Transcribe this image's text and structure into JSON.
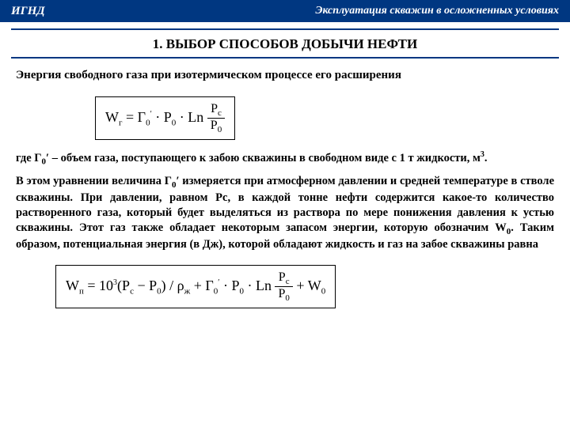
{
  "header": {
    "left": "ИГНД",
    "right": "Эксплуатация скважин в осложненных условиях"
  },
  "title": "1. ВЫБОР СПОСОБОВ ДОБЫЧИ НЕФТИ",
  "para1": "Энергия свободного газа при изотермическом процессе его расширения",
  "formula1": {
    "lhs": "W",
    "lhs_sub": "г",
    "eq": " = Г",
    "g_sub": "0",
    "g_sup": "′",
    "mid": " · P",
    "p_sub": "0",
    "ln": " · Ln ",
    "frac_num_p": "P",
    "frac_num_sub": "c",
    "frac_den_p": "P",
    "frac_den_sub": "0"
  },
  "para2_a": "  где Г",
  "para2_b": " – объем газа, поступающего к забою скважины в свободном виде с 1 т жидкости, м",
  "para2_c": ".",
  "para3_a": "В этом уравнении величина Г",
  "para3_b": " измеряется при атмосферном давлении и средней температуре в стволе скважины. При давлении, равном Рс, в каждой тонне нефти содержится какое-то количество растворенного газа, который будет выделяться из раствора по мере понижения давления к устью скважины. Этот газ также обладает некоторым запасом энергии, которую обозначим W",
  "para3_c": ". Таким образом, потенциальная энергия (в Дж), которой обладают жидкость и газ на забое скважины равна",
  "formula2": {
    "lhs": "W",
    "lhs_sub": "п",
    "eq1": " = 10",
    "exp": "3",
    "eq2": "(P",
    "pc_sub": "c",
    "eq3": " − P",
    "p0_sub": "0",
    "eq4": ") / ρ",
    "rho_sub": "ж",
    "eq5": " + Г",
    "g_sub": "0",
    "g_sup": "′",
    "eq6": " · P",
    "p0_sub2": "0",
    "eq7": " · Ln ",
    "frac_num_p": "P",
    "frac_num_sub": "c",
    "frac_den_p": "P",
    "frac_den_sub": "0",
    "eq8": " + W",
    "w_sub": "0"
  },
  "sub0": "0",
  "sup_prime": "′",
  "sup3": "3"
}
